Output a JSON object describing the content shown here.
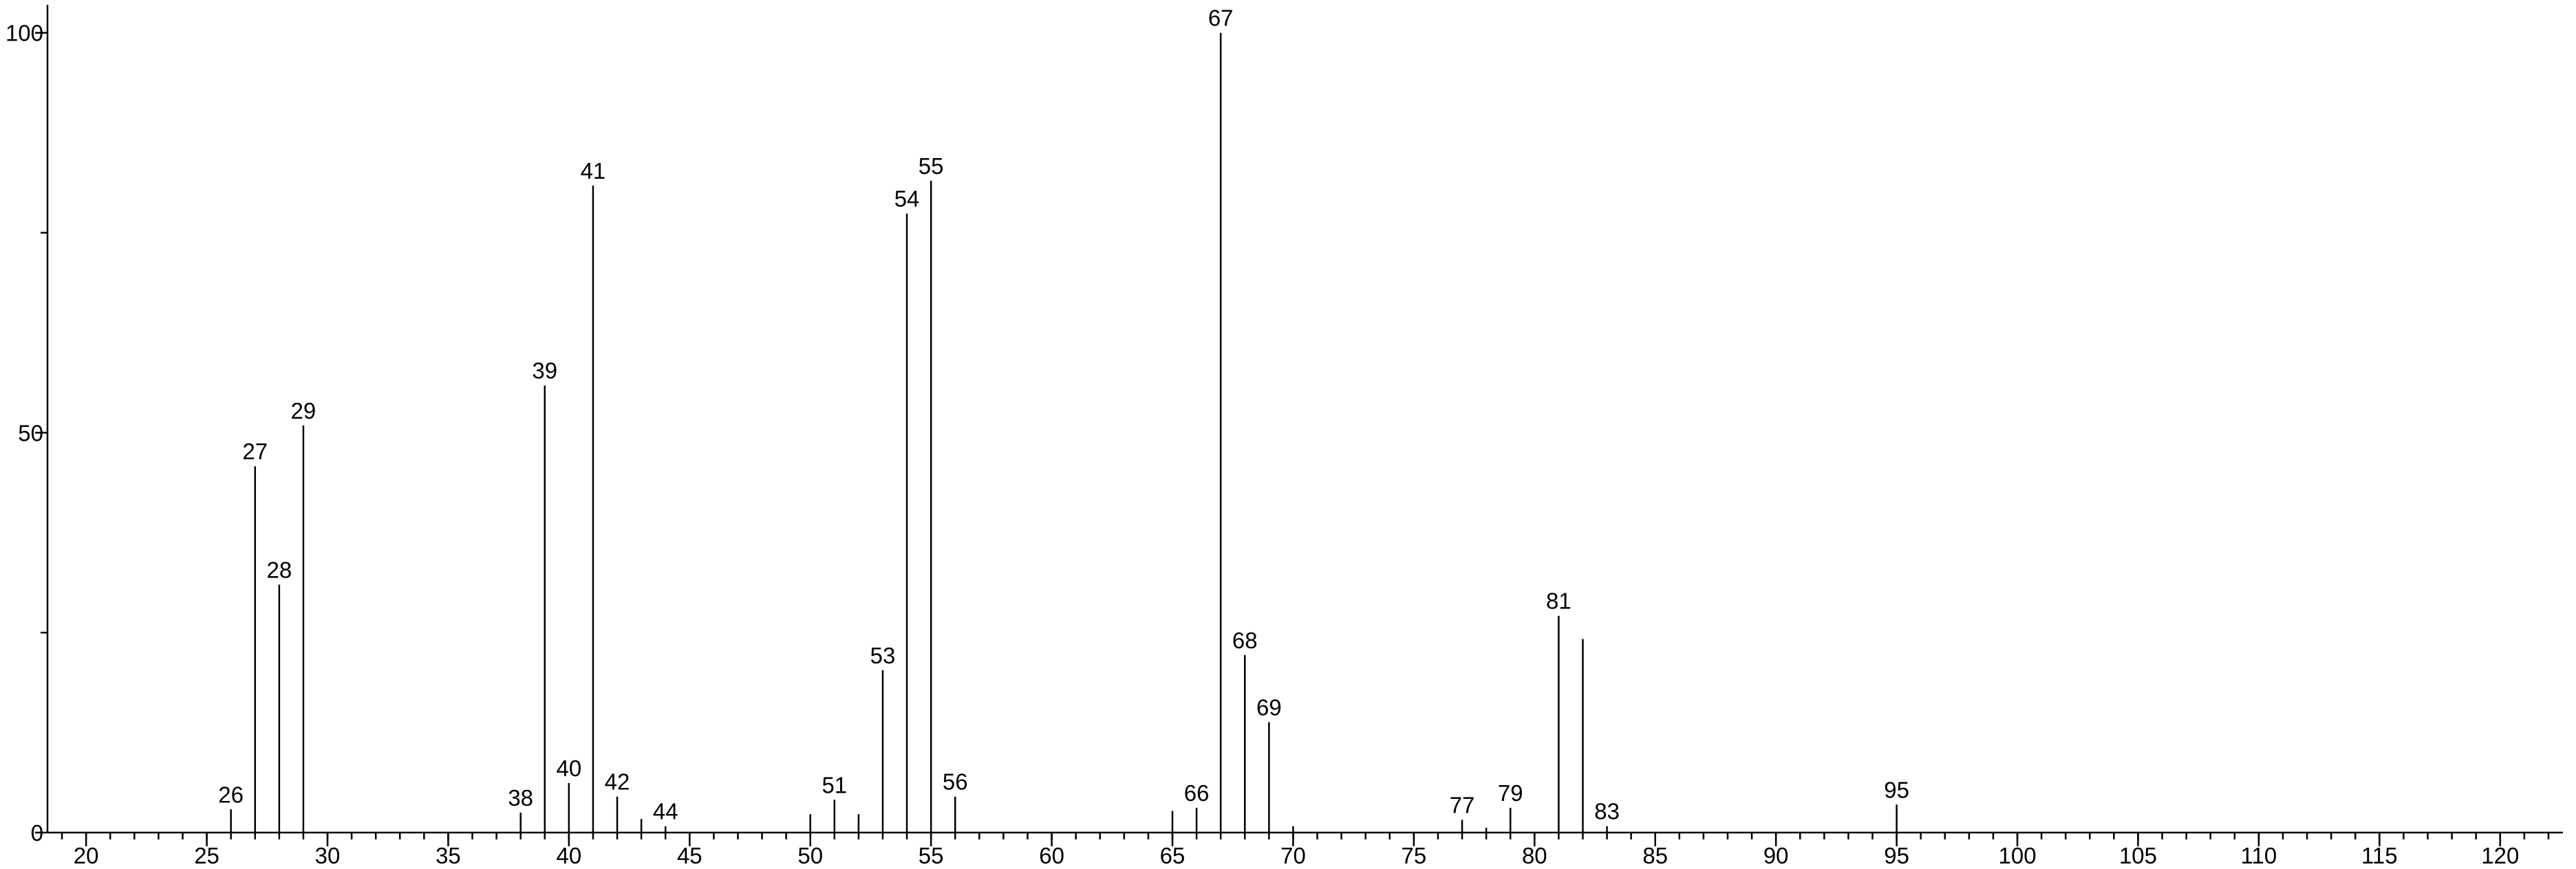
{
  "chart_data": {
    "type": "stem",
    "x": [
      26,
      27,
      28,
      29,
      38,
      39,
      40,
      41,
      42,
      43,
      44,
      50,
      51,
      52,
      53,
      54,
      55,
      56,
      65,
      66,
      67,
      68,
      69,
      70,
      77,
      78,
      79,
      81,
      82,
      83,
      95
    ],
    "values": [
      2.9,
      45.8,
      31.0,
      50.9,
      2.5,
      55.9,
      6.2,
      80.9,
      4.5,
      1.7,
      0.8,
      2.3,
      4.1,
      2.3,
      20.3,
      77.4,
      81.5,
      4.5,
      2.7,
      3.1,
      100,
      22.2,
      13.8,
      0.8,
      1.6,
      0.6,
      3.1,
      27.1,
      24.2,
      0.8,
      3.5
    ],
    "labeled": [
      true,
      true,
      true,
      true,
      true,
      true,
      true,
      true,
      true,
      false,
      true,
      false,
      true,
      false,
      true,
      true,
      true,
      true,
      false,
      true,
      true,
      true,
      true,
      false,
      true,
      false,
      true,
      true,
      false,
      true,
      true
    ],
    "color": "#000000",
    "xlim": [
      18.4,
      122.6
    ],
    "xticks": [
      20,
      25,
      30,
      35,
      40,
      45,
      50,
      55,
      60,
      65,
      70,
      75,
      80,
      85,
      90,
      95,
      100,
      105,
      110,
      115,
      120
    ],
    "xminor_interval": 1,
    "ylim": [
      0,
      103.5
    ],
    "yticks": [
      0,
      50,
      100
    ],
    "yminor_ticks": [
      25,
      75
    ]
  }
}
